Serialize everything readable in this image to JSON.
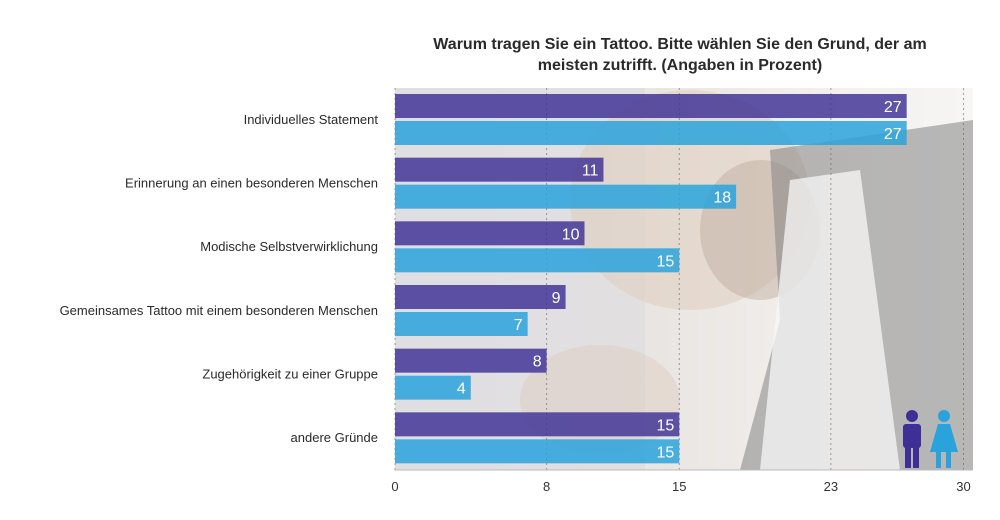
{
  "chart_data": {
    "type": "bar",
    "orientation": "horizontal",
    "title": "Warum tragen Sie ein Tattoo. Bitte wählen Sie den Grund, der am meisten zutrifft. (Angaben in Prozent)",
    "title_lines": [
      "Warum tragen Sie ein Tattoo. Bitte wählen Sie den Grund, der am",
      "meisten zutrifft. (Angaben in Prozent)"
    ],
    "categories": [
      "Individuelles Statement",
      "Erinnerung an einen besonderen Menschen",
      "Modische Selbstverwirklichung",
      "Gemeinsames Tattoo mit einem besonderen Menschen",
      "Zugehörigkeit zu einer Gruppe",
      "andere Gründe"
    ],
    "series": [
      {
        "name": "",
        "color": "#3d2f95",
        "values": [
          27,
          11,
          10,
          9,
          8,
          15
        ]
      },
      {
        "name": "",
        "color": "#2aa3dc",
        "values": [
          27,
          18,
          15,
          7,
          4,
          15
        ]
      }
    ],
    "xlim": [
      0,
      30.5
    ],
    "xticks": [
      0,
      8,
      15,
      23,
      30
    ],
    "grid": true,
    "legend": "bottom-right icons",
    "icons": [
      "male-figure-icon",
      "female-figure-icon"
    ],
    "background": "photo of tattoo artist"
  }
}
